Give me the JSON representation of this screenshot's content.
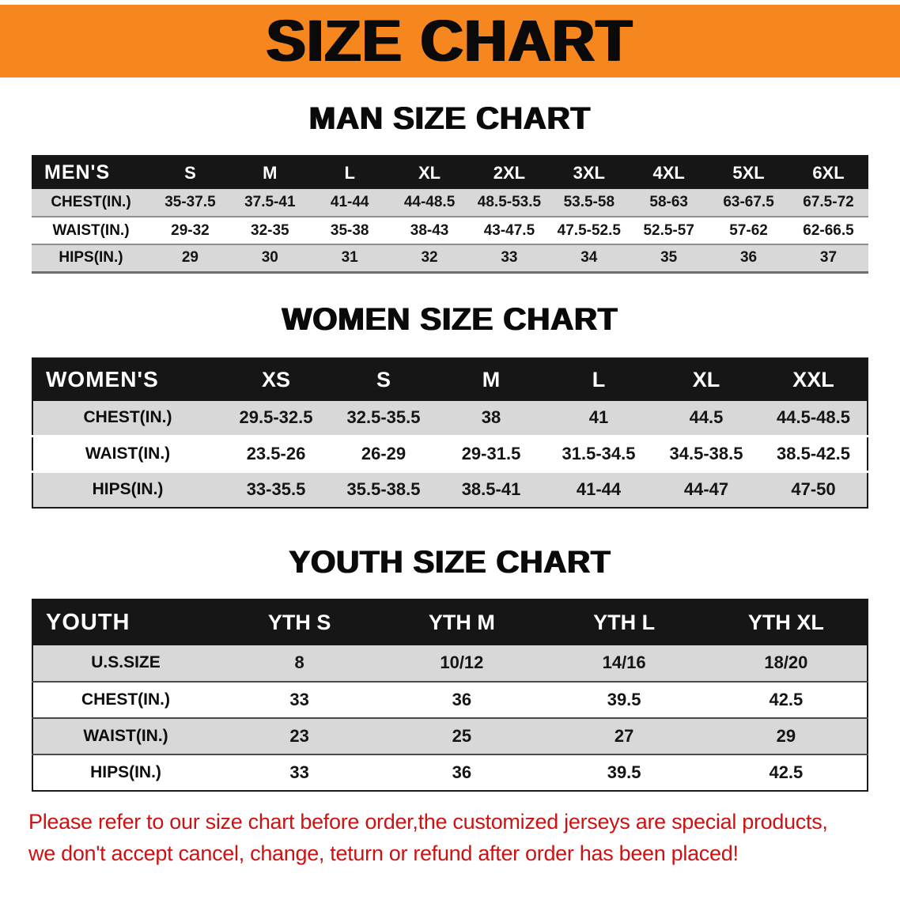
{
  "banner": {
    "title": "SIZE CHART"
  },
  "sections": [
    {
      "id": "men",
      "heading": "MAN SIZE CHART",
      "header_label": "MEN'S",
      "columns": [
        "S",
        "M",
        "L",
        "XL",
        "2XL",
        "3XL",
        "4XL",
        "5XL",
        "6XL"
      ],
      "rows": [
        {
          "label": "CHEST(IN.)",
          "values": [
            "35-37.5",
            "37.5-41",
            "41-44",
            "44-48.5",
            "48.5-53.5",
            "53.5-58",
            "58-63",
            "63-67.5",
            "67.5-72"
          ]
        },
        {
          "label": "WAIST(IN.)",
          "values": [
            "29-32",
            "32-35",
            "35-38",
            "38-43",
            "43-47.5",
            "47.5-52.5",
            "52.5-57",
            "57-62",
            "62-66.5"
          ]
        },
        {
          "label": "HIPS(IN.)",
          "values": [
            "29",
            "30",
            "31",
            "32",
            "33",
            "34",
            "35",
            "36",
            "37"
          ]
        }
      ]
    },
    {
      "id": "women",
      "heading": "WOMEN SIZE CHART",
      "header_label": "WOMEN'S",
      "columns": [
        "XS",
        "S",
        "M",
        "L",
        "XL",
        "XXL"
      ],
      "rows": [
        {
          "label": "CHEST(IN.)",
          "values": [
            "29.5-32.5",
            "32.5-35.5",
            "38",
            "41",
            "44.5",
            "44.5-48.5"
          ]
        },
        {
          "label": "WAIST(IN.)",
          "values": [
            "23.5-26",
            "26-29",
            "29-31.5",
            "31.5-34.5",
            "34.5-38.5",
            "38.5-42.5"
          ]
        },
        {
          "label": "HIPS(IN.)",
          "values": [
            "33-35.5",
            "35.5-38.5",
            "38.5-41",
            "41-44",
            "44-47",
            "47-50"
          ]
        }
      ]
    },
    {
      "id": "youth",
      "heading": "YOUTH SIZE CHART",
      "header_label": "YOUTH",
      "columns": [
        "YTH S",
        "YTH M",
        "YTH L",
        "YTH XL"
      ],
      "rows": [
        {
          "label": "U.S.SIZE",
          "values": [
            "8",
            "10/12",
            "14/16",
            "18/20"
          ]
        },
        {
          "label": "CHEST(IN.)",
          "values": [
            "33",
            "36",
            "39.5",
            "42.5"
          ]
        },
        {
          "label": "WAIST(IN.)",
          "values": [
            "23",
            "25",
            "27",
            "29"
          ]
        },
        {
          "label": "HIPS(IN.)",
          "values": [
            "33",
            "36",
            "39.5",
            "42.5"
          ]
        }
      ]
    }
  ],
  "footer": {
    "lines": [
      "Please refer to our size chart before order,the customized jerseys are special products,",
      "we don't accept cancel, change, teturn or refund after order has been placed!"
    ]
  },
  "colors": {
    "banner_bg": "#f6871f",
    "header_bg": "#161616",
    "row_alt_bg": "#d8d8d8",
    "notice_red": "#cc1212"
  }
}
